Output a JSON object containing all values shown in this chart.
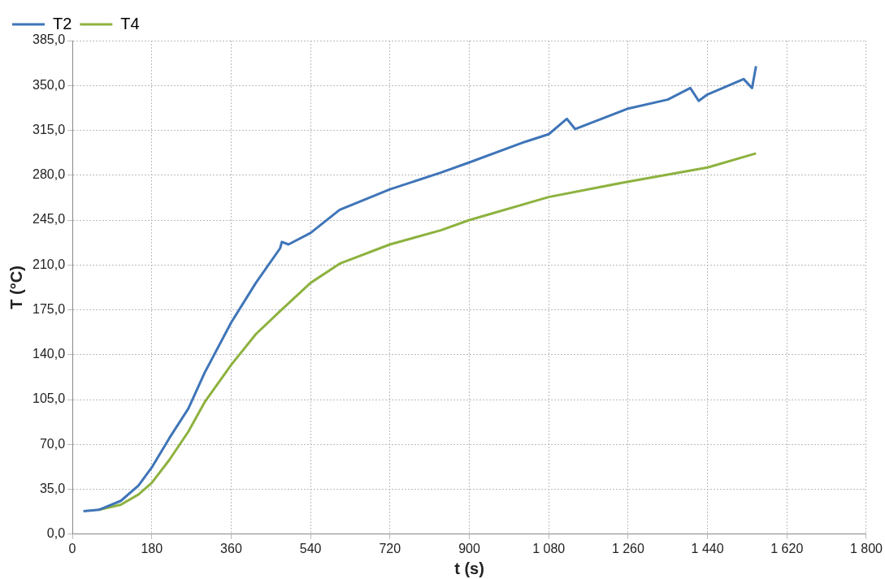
{
  "chart_data": {
    "type": "line",
    "xlabel": "t (s)",
    "ylabel": "T (°C)",
    "xlim": [
      0,
      1800
    ],
    "ylim": [
      0,
      385
    ],
    "xticks": [
      0,
      180,
      360,
      540,
      720,
      900,
      {
        "value": 1080,
        "label": "1 080"
      },
      {
        "value": 1260,
        "label": "1 260"
      },
      {
        "value": 1440,
        "label": "1 440"
      },
      {
        "value": 1620,
        "label": "1 620"
      },
      {
        "value": 1800,
        "label": "1 800"
      }
    ],
    "yticks": [
      {
        "value": 0,
        "label": "0,0"
      },
      {
        "value": 35,
        "label": "35,0"
      },
      {
        "value": 70,
        "label": "70,0"
      },
      {
        "value": 105,
        "label": "105,0"
      },
      {
        "value": 140,
        "label": "140,0"
      },
      {
        "value": 175,
        "label": "175,0"
      },
      {
        "value": 210,
        "label": "210,0"
      },
      {
        "value": 245,
        "label": "245,0"
      },
      {
        "value": 280,
        "label": "280,0"
      },
      {
        "value": 315,
        "label": "315,0"
      },
      {
        "value": 350,
        "label": "350,0"
      },
      {
        "value": 385,
        "label": "385,0"
      }
    ],
    "grid": true,
    "legend": "top left",
    "marker": "none",
    "line_style": "solid",
    "series": [
      {
        "name": "T2",
        "color": "#3f75b8",
        "x": [
          25,
          60,
          110,
          150,
          180,
          220,
          263,
          300,
          360,
          416,
          471,
          475,
          490,
          540,
          606,
          720,
          835,
          900,
          1026,
          1080,
          1121,
          1140,
          1260,
          1350,
          1401,
          1420,
          1440,
          1522,
          1541,
          1550
        ],
        "values": [
          18,
          19,
          26,
          38,
          52,
          75,
          98,
          126,
          165,
          196,
          223,
          228,
          226,
          235,
          253,
          269,
          282,
          290,
          306,
          312,
          324,
          316,
          332,
          339,
          348,
          338,
          343,
          355,
          348,
          365
        ]
      },
      {
        "name": "T4",
        "color": "#8db23f",
        "x": [
          60,
          110,
          150,
          180,
          220,
          263,
          300,
          360,
          416,
          471,
          540,
          606,
          720,
          835,
          900,
          1080,
          1260,
          1440,
          1550
        ],
        "values": [
          19,
          23,
          31,
          40,
          58,
          80,
          103,
          132,
          156,
          174,
          196,
          211,
          226,
          237,
          245,
          263,
          275,
          286,
          297
        ]
      }
    ]
  }
}
